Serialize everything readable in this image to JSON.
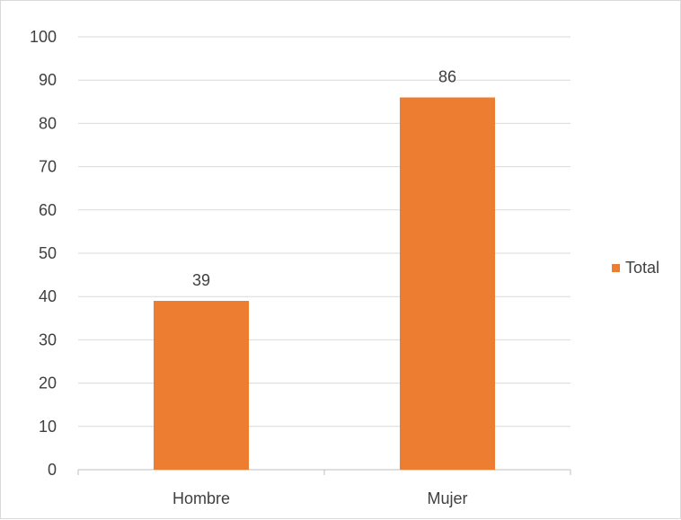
{
  "chart_data": {
    "type": "bar",
    "categories": [
      "Hombre",
      "Mujer"
    ],
    "series": [
      {
        "name": "Total",
        "values": [
          39,
          86
        ],
        "color": "#ED7D31"
      }
    ],
    "ylim": [
      0,
      100
    ],
    "yticks": [
      0,
      10,
      20,
      30,
      40,
      50,
      60,
      70,
      80,
      90,
      100
    ],
    "data_labels": true,
    "grid": true,
    "legend": "right",
    "title": "",
    "xlabel": "",
    "ylabel": ""
  }
}
